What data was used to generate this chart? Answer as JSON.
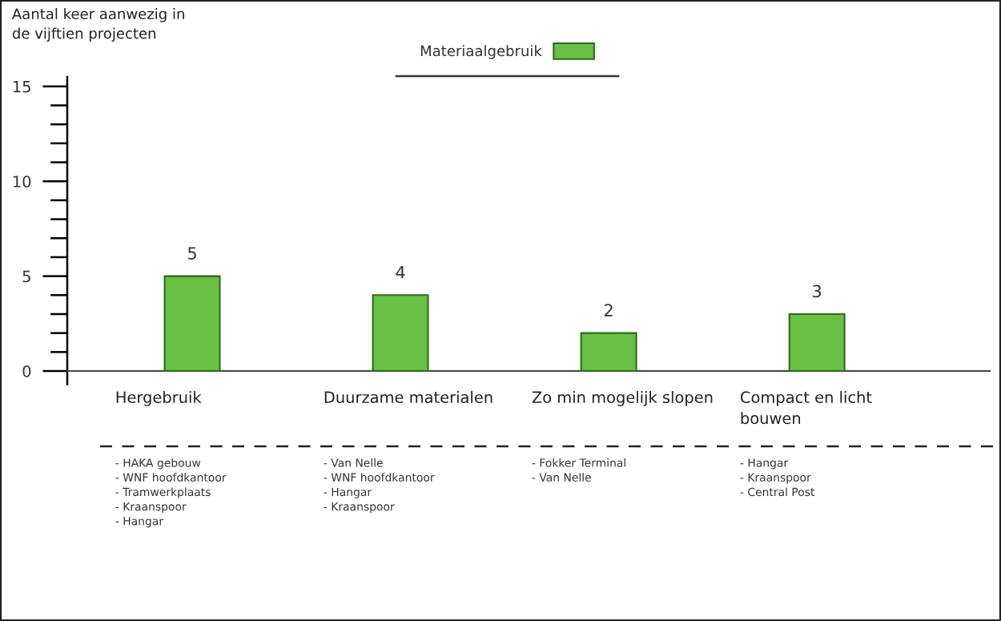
{
  "chart_data": {
    "type": "bar",
    "ylabel": "Aantal keer aanwezig in\nde vijftien projecten",
    "categories": [
      "Hergebruik",
      "Duurzame materialen",
      "Zo min mogelijk slopen",
      "Compact en licht\nbouwen"
    ],
    "series": [
      {
        "name": "Materiaalgebruik",
        "color": "#6abf45",
        "values": [
          5,
          4,
          2,
          3
        ]
      }
    ],
    "ylim": [
      -0.7,
      15.5
    ],
    "yticks": [
      0,
      5,
      10,
      15
    ],
    "data_labels": true,
    "legend": "top",
    "grid": false,
    "annotations": [
      "- HAKA gebouw\n- WNF hoofdkantoor\n- Tramwerkplaats\n- Kraanspoor\n- Hangar",
      "- Van Nelle\n- WNF hoofdkantoor\n- Hangar\n- Kraanspoor",
      "- Fokker Terminal\n- Van Nelle",
      "- Hangar\n- Kraanspoor\n- Central Post"
    ]
  }
}
